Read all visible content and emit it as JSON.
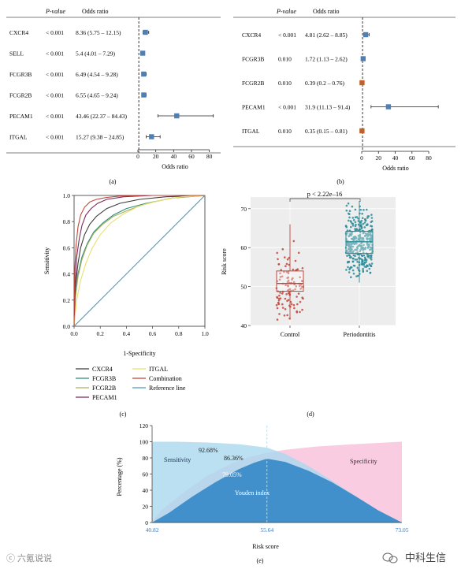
{
  "figure": {
    "panel_labels": [
      "(a)",
      "(b)",
      "(c)",
      "(d)",
      "(e)"
    ],
    "watermark_left": "ⓒ 六氪说说",
    "watermark_right": "中科生信"
  },
  "chart_data": [
    {
      "id": "a",
      "type": "forest",
      "col_headers": {
        "pvalue": "P-value",
        "or": "Odds ratio"
      },
      "rows": [
        {
          "label": "CXCR4",
          "p": "< 0.001",
          "or_text": "8.36 (5.75 – 12.15)",
          "or": 8.36,
          "lo": 5.75,
          "hi": 12.15
        },
        {
          "label": "SELL",
          "p": "< 0.001",
          "or_text": "5.4 (4.01 – 7.29)",
          "or": 5.4,
          "lo": 4.01,
          "hi": 7.29
        },
        {
          "label": "FCGR3B",
          "p": "< 0.001",
          "or_text": "6.49 (4.54 – 9.28)",
          "or": 6.49,
          "lo": 4.54,
          "hi": 9.28
        },
        {
          "label": "FCGR2B",
          "p": "< 0.001",
          "or_text": "6.55 (4.65 – 9.24)",
          "or": 6.55,
          "lo": 4.65,
          "hi": 9.24
        },
        {
          "label": "PECAM1",
          "p": "< 0.001",
          "or_text": "43.46 (22.37 – 84.43)",
          "or": 43.46,
          "lo": 22.37,
          "hi": 84.43
        },
        {
          "label": "ITGAL",
          "p": "< 0.001",
          "or_text": "15.27 (9.38 – 24.85)",
          "or": 15.27,
          "lo": 9.38,
          "hi": 24.85
        }
      ],
      "xlabel": "Odds ratio",
      "xticks": [
        0,
        20,
        40,
        60,
        80
      ],
      "xlim": [
        0,
        90
      ],
      "ref_line": 1
    },
    {
      "id": "b",
      "type": "forest",
      "col_headers": {
        "pvalue": "P-value",
        "or": "Odds ratio"
      },
      "rows": [
        {
          "label": "CXCR4",
          "p": "< 0.001",
          "or_text": "4.81 (2.62 – 8.85)",
          "or": 4.81,
          "lo": 2.62,
          "hi": 8.85,
          "color": "#4f7fb5"
        },
        {
          "label": "FCGR3B",
          "p": "0.010",
          "or_text": "1.72 (1.13 – 2.62)",
          "or": 1.72,
          "lo": 1.13,
          "hi": 2.62,
          "color": "#4f7fb5"
        },
        {
          "label": "FCGR2B",
          "p": "0.010",
          "or_text": "0.39 (0.2 – 0.76)",
          "or": 0.39,
          "lo": 0.2,
          "hi": 0.76,
          "color": "#c0602a"
        },
        {
          "label": "PECAM1",
          "p": "< 0.001",
          "or_text": "31.9 (11.13 – 91.4)",
          "or": 31.9,
          "lo": 11.13,
          "hi": 91.4,
          "color": "#4f7fb5"
        },
        {
          "label": "ITGAL",
          "p": "0.010",
          "or_text": "0.35 (0.15 – 0.81)",
          "or": 0.35,
          "lo": 0.15,
          "hi": 0.81,
          "color": "#c0602a"
        }
      ],
      "xlabel": "Odds ratio",
      "xticks": [
        0,
        20,
        40,
        60,
        80
      ],
      "xlim": [
        0,
        95
      ],
      "ref_line": 1
    },
    {
      "id": "c",
      "type": "line",
      "xlabel": "1-Specificity",
      "ylabel": "Sensitivity",
      "xticks": [
        0.0,
        0.2,
        0.4,
        0.6,
        0.8,
        1.0
      ],
      "yticks": [
        0.0,
        0.2,
        0.4,
        0.6,
        0.8,
        1.0
      ],
      "xlim": [
        0,
        1
      ],
      "ylim": [
        0,
        1
      ],
      "legend_placement": "below",
      "legend_col1": [
        "CXCR4",
        "FCGR3B",
        "FCGR2B",
        "PECAM1"
      ],
      "legend_col2": [
        "ITGAL",
        "Combination",
        "Reference line"
      ],
      "series": [
        {
          "name": "CXCR4",
          "color": "#3c3c3c",
          "x": [
            0,
            0.01,
            0.03,
            0.05,
            0.08,
            0.12,
            0.17,
            0.25,
            0.35,
            0.5,
            0.7,
            1.0
          ],
          "y": [
            0,
            0.3,
            0.48,
            0.6,
            0.7,
            0.78,
            0.84,
            0.9,
            0.94,
            0.97,
            0.99,
            1.0
          ]
        },
        {
          "name": "FCGR3B",
          "color": "#2e8b7a",
          "x": [
            0,
            0.01,
            0.03,
            0.06,
            0.1,
            0.15,
            0.22,
            0.3,
            0.4,
            0.55,
            0.75,
            1.0
          ],
          "y": [
            0,
            0.24,
            0.4,
            0.53,
            0.63,
            0.72,
            0.79,
            0.85,
            0.9,
            0.94,
            0.98,
            1.0
          ]
        },
        {
          "name": "FCGR2B",
          "color": "#a6b061",
          "x": [
            0,
            0.01,
            0.03,
            0.06,
            0.1,
            0.15,
            0.22,
            0.3,
            0.42,
            0.56,
            0.75,
            1.0
          ],
          "y": [
            0,
            0.22,
            0.38,
            0.51,
            0.62,
            0.71,
            0.78,
            0.84,
            0.89,
            0.94,
            0.98,
            1.0
          ]
        },
        {
          "name": "PECAM1",
          "color": "#7a2a5a",
          "x": [
            0,
            0.01,
            0.02,
            0.04,
            0.06,
            0.09,
            0.13,
            0.18,
            0.25,
            0.38,
            0.6,
            1.0
          ],
          "y": [
            0,
            0.35,
            0.53,
            0.67,
            0.77,
            0.85,
            0.9,
            0.94,
            0.97,
            0.99,
            1.0,
            1.0
          ]
        },
        {
          "name": "ITGAL",
          "color": "#e8e070",
          "x": [
            0,
            0.02,
            0.05,
            0.09,
            0.14,
            0.2,
            0.28,
            0.38,
            0.5,
            0.65,
            0.82,
            1.0
          ],
          "y": [
            0,
            0.2,
            0.35,
            0.48,
            0.6,
            0.7,
            0.79,
            0.86,
            0.92,
            0.96,
            0.99,
            1.0
          ]
        },
        {
          "name": "Combination",
          "color": "#c0453a",
          "x": [
            0,
            0.005,
            0.015,
            0.03,
            0.05,
            0.08,
            0.12,
            0.17,
            0.25,
            0.35,
            0.55,
            1.0
          ],
          "y": [
            0,
            0.42,
            0.62,
            0.76,
            0.85,
            0.91,
            0.95,
            0.97,
            0.985,
            0.995,
            1.0,
            1.0
          ]
        },
        {
          "name": "Reference line",
          "color": "#4a9bb8",
          "x": [
            0,
            1
          ],
          "y": [
            0,
            1
          ]
        }
      ]
    },
    {
      "id": "d",
      "type": "boxplot",
      "ylabel": "Risk score",
      "categories": [
        "Control",
        "Periodontitis"
      ],
      "yticks": [
        40,
        50,
        60,
        70
      ],
      "ylim": [
        40,
        73
      ],
      "annotation": "p < 2.22e–16",
      "colors": [
        "#c0453a",
        "#2a8a96"
      ],
      "boxes": [
        {
          "name": "Control",
          "min": 41.5,
          "q1": 48.8,
          "median": 50.8,
          "q3": 54.0,
          "max": 66.0
        },
        {
          "name": "Periodontitis",
          "min": 51.0,
          "q1": 58.5,
          "median": 61.5,
          "q3": 64.2,
          "max": 72.0
        }
      ]
    },
    {
      "id": "e",
      "type": "area",
      "xlabel": "Risk score",
      "ylabel": "Percentage (%)",
      "yticks": [
        0,
        20,
        40,
        60,
        80,
        100,
        120
      ],
      "ylim": [
        0,
        120
      ],
      "xlim": [
        40.82,
        73.05
      ],
      "x_marks": [
        "40.82",
        "55.64",
        "73.05"
      ],
      "threshold": 55.64,
      "labels": {
        "sensitivity": "Sensitivity",
        "specificity": "Specificity",
        "youden": "Youden index",
        "sens_at_cut": "92.68%",
        "spec_at_cut": "86.36%",
        "youden_at_cut": "79.05%"
      },
      "colors": {
        "sensitivity": "#a9d8ef",
        "specificity": "#f9c6df",
        "youden": "#3a8cc9"
      },
      "sensitivity_curve": {
        "x": [
          40.82,
          44,
          48,
          52,
          55.64,
          58,
          61,
          64,
          67,
          70,
          73.05
        ],
        "y": [
          100,
          100,
          99,
          97,
          92.68,
          85,
          70,
          52,
          33,
          15,
          0
        ]
      },
      "specificity_curve": {
        "x": [
          40.82,
          42,
          45,
          48,
          51,
          53,
          55.64,
          58,
          62,
          66,
          70,
          73.05
        ],
        "y": [
          0,
          15,
          38,
          58,
          73,
          80,
          86.36,
          90,
          94,
          96.5,
          98.5,
          100
        ]
      },
      "youden_curve": {
        "x": [
          40.82,
          43,
          46,
          49,
          52,
          54,
          55.64,
          58,
          61,
          64,
          67,
          70,
          73.05
        ],
        "y": [
          0,
          12,
          32,
          50,
          66,
          74,
          79.05,
          75,
          64,
          50,
          33,
          15,
          0
        ]
      }
    }
  ]
}
